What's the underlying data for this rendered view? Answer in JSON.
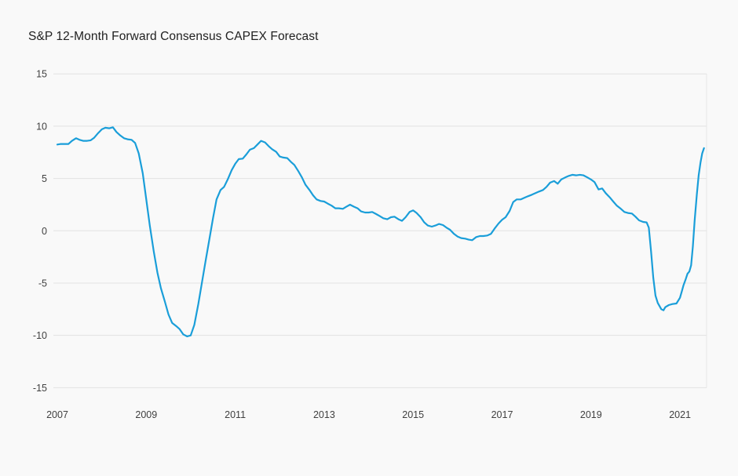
{
  "chart_data": {
    "type": "line",
    "title": "S&P 12-Month Forward Consensus CAPEX Forecast",
    "xlabel": "",
    "ylabel": "",
    "x_ticks": [
      2007,
      2009,
      2011,
      2013,
      2015,
      2017,
      2019,
      2021
    ],
    "y_ticks": [
      15,
      10,
      5,
      0,
      -5,
      -10,
      -15
    ],
    "xlim": [
      2006.8,
      2021.75
    ],
    "ylim": [
      -15,
      15
    ],
    "grid": "horizontal-only",
    "legend": "none",
    "colors": {
      "line": "#1A9ED9",
      "grid": "#E2E2E2",
      "plot_right_border": "#E6E6E6",
      "background": "#F9F9F9",
      "tick_text": "#404040",
      "title_text": "#212121"
    },
    "points": [
      [
        2007.0,
        8.25
      ],
      [
        2007.08,
        8.3
      ],
      [
        2007.17,
        8.3
      ],
      [
        2007.25,
        8.3
      ],
      [
        2007.33,
        8.6
      ],
      [
        2007.42,
        8.85
      ],
      [
        2007.5,
        8.7
      ],
      [
        2007.58,
        8.6
      ],
      [
        2007.67,
        8.6
      ],
      [
        2007.75,
        8.65
      ],
      [
        2007.83,
        8.9
      ],
      [
        2007.92,
        9.35
      ],
      [
        2008.0,
        9.7
      ],
      [
        2008.08,
        9.85
      ],
      [
        2008.17,
        9.8
      ],
      [
        2008.25,
        9.9
      ],
      [
        2008.33,
        9.45
      ],
      [
        2008.42,
        9.1
      ],
      [
        2008.5,
        8.85
      ],
      [
        2008.58,
        8.75
      ],
      [
        2008.67,
        8.7
      ],
      [
        2008.75,
        8.4
      ],
      [
        2008.83,
        7.4
      ],
      [
        2008.92,
        5.5
      ],
      [
        2009.0,
        3.0
      ],
      [
        2009.08,
        0.5
      ],
      [
        2009.17,
        -2.0
      ],
      [
        2009.25,
        -4.0
      ],
      [
        2009.33,
        -5.5
      ],
      [
        2009.42,
        -6.8
      ],
      [
        2009.5,
        -8.0
      ],
      [
        2009.58,
        -8.8
      ],
      [
        2009.67,
        -9.1
      ],
      [
        2009.75,
        -9.4
      ],
      [
        2009.83,
        -9.9
      ],
      [
        2009.92,
        -10.1
      ],
      [
        2010.0,
        -10.0
      ],
      [
        2010.08,
        -9.0
      ],
      [
        2010.17,
        -7.0
      ],
      [
        2010.25,
        -5.0
      ],
      [
        2010.33,
        -3.0
      ],
      [
        2010.42,
        -0.8
      ],
      [
        2010.5,
        1.2
      ],
      [
        2010.58,
        3.0
      ],
      [
        2010.67,
        3.9
      ],
      [
        2010.75,
        4.2
      ],
      [
        2010.83,
        4.9
      ],
      [
        2010.92,
        5.8
      ],
      [
        2011.0,
        6.4
      ],
      [
        2011.08,
        6.85
      ],
      [
        2011.17,
        6.9
      ],
      [
        2011.25,
        7.3
      ],
      [
        2011.33,
        7.75
      ],
      [
        2011.42,
        7.9
      ],
      [
        2011.5,
        8.25
      ],
      [
        2011.58,
        8.6
      ],
      [
        2011.67,
        8.45
      ],
      [
        2011.75,
        8.1
      ],
      [
        2011.83,
        7.8
      ],
      [
        2011.92,
        7.55
      ],
      [
        2012.0,
        7.1
      ],
      [
        2012.08,
        7.0
      ],
      [
        2012.17,
        6.95
      ],
      [
        2012.25,
        6.6
      ],
      [
        2012.33,
        6.3
      ],
      [
        2012.42,
        5.7
      ],
      [
        2012.5,
        5.1
      ],
      [
        2012.58,
        4.4
      ],
      [
        2012.67,
        3.9
      ],
      [
        2012.75,
        3.4
      ],
      [
        2012.83,
        3.0
      ],
      [
        2012.92,
        2.85
      ],
      [
        2013.0,
        2.8
      ],
      [
        2013.08,
        2.6
      ],
      [
        2013.17,
        2.4
      ],
      [
        2013.25,
        2.15
      ],
      [
        2013.33,
        2.15
      ],
      [
        2013.42,
        2.1
      ],
      [
        2013.5,
        2.3
      ],
      [
        2013.58,
        2.5
      ],
      [
        2013.67,
        2.3
      ],
      [
        2013.75,
        2.15
      ],
      [
        2013.83,
        1.85
      ],
      [
        2013.92,
        1.75
      ],
      [
        2014.0,
        1.75
      ],
      [
        2014.08,
        1.8
      ],
      [
        2014.17,
        1.6
      ],
      [
        2014.25,
        1.4
      ],
      [
        2014.33,
        1.2
      ],
      [
        2014.42,
        1.1
      ],
      [
        2014.5,
        1.3
      ],
      [
        2014.58,
        1.35
      ],
      [
        2014.67,
        1.1
      ],
      [
        2014.75,
        0.95
      ],
      [
        2014.83,
        1.3
      ],
      [
        2014.92,
        1.8
      ],
      [
        2015.0,
        1.95
      ],
      [
        2015.08,
        1.7
      ],
      [
        2015.17,
        1.3
      ],
      [
        2015.25,
        0.8
      ],
      [
        2015.33,
        0.5
      ],
      [
        2015.42,
        0.4
      ],
      [
        2015.5,
        0.5
      ],
      [
        2015.58,
        0.65
      ],
      [
        2015.67,
        0.55
      ],
      [
        2015.75,
        0.3
      ],
      [
        2015.83,
        0.1
      ],
      [
        2015.92,
        -0.3
      ],
      [
        2016.0,
        -0.55
      ],
      [
        2016.08,
        -0.7
      ],
      [
        2016.17,
        -0.75
      ],
      [
        2016.25,
        -0.85
      ],
      [
        2016.33,
        -0.9
      ],
      [
        2016.42,
        -0.6
      ],
      [
        2016.5,
        -0.5
      ],
      [
        2016.58,
        -0.5
      ],
      [
        2016.67,
        -0.45
      ],
      [
        2016.75,
        -0.3
      ],
      [
        2016.83,
        0.2
      ],
      [
        2016.92,
        0.7
      ],
      [
        2017.0,
        1.05
      ],
      [
        2017.08,
        1.3
      ],
      [
        2017.17,
        1.9
      ],
      [
        2017.25,
        2.75
      ],
      [
        2017.33,
        3.0
      ],
      [
        2017.42,
        3.0
      ],
      [
        2017.5,
        3.15
      ],
      [
        2017.58,
        3.3
      ],
      [
        2017.67,
        3.45
      ],
      [
        2017.75,
        3.6
      ],
      [
        2017.83,
        3.75
      ],
      [
        2017.92,
        3.9
      ],
      [
        2018.0,
        4.2
      ],
      [
        2018.08,
        4.6
      ],
      [
        2018.17,
        4.75
      ],
      [
        2018.25,
        4.5
      ],
      [
        2018.33,
        4.9
      ],
      [
        2018.42,
        5.1
      ],
      [
        2018.5,
        5.25
      ],
      [
        2018.58,
        5.35
      ],
      [
        2018.67,
        5.3
      ],
      [
        2018.75,
        5.35
      ],
      [
        2018.83,
        5.3
      ],
      [
        2018.92,
        5.1
      ],
      [
        2019.0,
        4.9
      ],
      [
        2019.08,
        4.65
      ],
      [
        2019.17,
        3.95
      ],
      [
        2019.25,
        4.05
      ],
      [
        2019.33,
        3.6
      ],
      [
        2019.42,
        3.2
      ],
      [
        2019.5,
        2.8
      ],
      [
        2019.58,
        2.4
      ],
      [
        2019.67,
        2.1
      ],
      [
        2019.75,
        1.8
      ],
      [
        2019.83,
        1.7
      ],
      [
        2019.92,
        1.65
      ],
      [
        2020.0,
        1.35
      ],
      [
        2020.08,
        1.0
      ],
      [
        2020.17,
        0.85
      ],
      [
        2020.25,
        0.8
      ],
      [
        2020.3,
        0.3
      ],
      [
        2020.35,
        -2.0
      ],
      [
        2020.4,
        -4.5
      ],
      [
        2020.45,
        -6.2
      ],
      [
        2020.5,
        -6.9
      ],
      [
        2020.58,
        -7.5
      ],
      [
        2020.63,
        -7.6
      ],
      [
        2020.67,
        -7.3
      ],
      [
        2020.75,
        -7.1
      ],
      [
        2020.83,
        -7.0
      ],
      [
        2020.92,
        -6.95
      ],
      [
        2021.0,
        -6.4
      ],
      [
        2021.04,
        -5.8
      ],
      [
        2021.08,
        -5.2
      ],
      [
        2021.13,
        -4.6
      ],
      [
        2021.17,
        -4.1
      ],
      [
        2021.21,
        -3.9
      ],
      [
        2021.25,
        -3.3
      ],
      [
        2021.29,
        -1.5
      ],
      [
        2021.33,
        1.0
      ],
      [
        2021.38,
        3.5
      ],
      [
        2021.42,
        5.3
      ],
      [
        2021.46,
        6.5
      ],
      [
        2021.5,
        7.4
      ],
      [
        2021.54,
        7.9
      ]
    ]
  }
}
